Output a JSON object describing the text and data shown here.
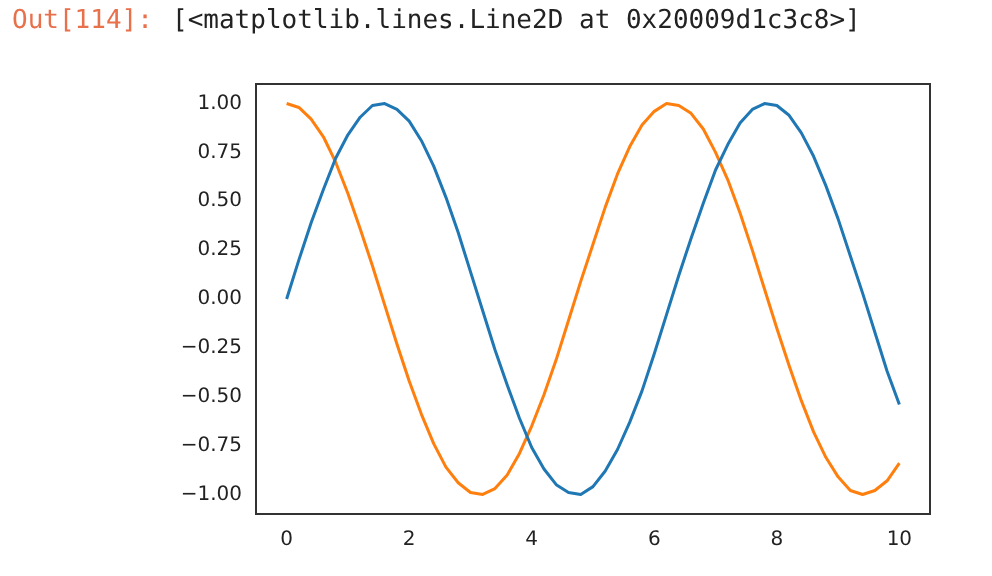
{
  "chart_data": {
    "type": "line",
    "annotations": [
      "Out[114]:",
      "[<matplotlib.lines.Line2D at 0x20009d1c3c8>]"
    ],
    "x": [
      0,
      0.2,
      0.4,
      0.6,
      0.8,
      1,
      1.2,
      1.4,
      1.6,
      1.8,
      2,
      2.2,
      2.4,
      2.6,
      2.8,
      3,
      3.2,
      3.4,
      3.6,
      3.8,
      4,
      4.2,
      4.4,
      4.6,
      4.8,
      5,
      5.2,
      5.4,
      5.6,
      5.8,
      6,
      6.2,
      6.4,
      6.6,
      6.8,
      7,
      7.2,
      7.4,
      7.6,
      7.8,
      8,
      8.2,
      8.4,
      8.6,
      8.8,
      9,
      9.2,
      9.4,
      9.6,
      9.8,
      10
    ],
    "series": [
      {
        "color": "#1f77b4",
        "values": [
          0,
          0.2,
          0.39,
          0.56,
          0.72,
          0.84,
          0.93,
          0.99,
          1,
          0.97,
          0.91,
          0.81,
          0.68,
          0.52,
          0.34,
          0.14,
          -0.06,
          -0.26,
          -0.44,
          -0.61,
          -0.76,
          -0.87,
          -0.95,
          -0.99,
          -1,
          -0.96,
          -0.88,
          -0.77,
          -0.63,
          -0.47,
          -0.28,
          -0.08,
          0.12,
          0.31,
          0.49,
          0.66,
          0.79,
          0.9,
          0.97,
          1,
          0.99,
          0.94,
          0.85,
          0.73,
          0.58,
          0.41,
          0.22,
          0.03,
          -0.17,
          -0.37,
          -0.54
        ]
      },
      {
        "color": "#ff7f0e",
        "values": [
          1,
          0.98,
          0.92,
          0.83,
          0.7,
          0.54,
          0.36,
          0.17,
          -0.03,
          -0.23,
          -0.42,
          -0.59,
          -0.74,
          -0.86,
          -0.94,
          -0.99,
          -1,
          -0.97,
          -0.9,
          -0.79,
          -0.65,
          -0.49,
          -0.31,
          -0.11,
          0.09,
          0.28,
          0.47,
          0.64,
          0.78,
          0.89,
          0.96,
          1,
          0.99,
          0.95,
          0.87,
          0.75,
          0.61,
          0.44,
          0.25,
          0.05,
          -0.15,
          -0.34,
          -0.52,
          -0.68,
          -0.81,
          -0.91,
          -0.98,
          -1,
          -0.98,
          -0.93,
          -0.84
        ]
      }
    ],
    "xlim": [
      -0.5,
      10.5
    ],
    "xticks": [
      0,
      2,
      4,
      6,
      8,
      10
    ],
    "ylim": [
      -1.1,
      1.1
    ],
    "yticks": [
      {
        "value": -1,
        "label": "−1.00"
      },
      {
        "value": -0.75,
        "label": "−0.75"
      },
      {
        "value": -0.5,
        "label": "−0.50"
      },
      {
        "value": -0.25,
        "label": "−0.25"
      },
      {
        "value": 0,
        "label": "0.00"
      },
      {
        "value": 0.25,
        "label": "0.25"
      },
      {
        "value": 0.5,
        "label": "0.50"
      },
      {
        "value": 0.75,
        "label": "0.75"
      },
      {
        "value": 1,
        "label": "1.00"
      }
    ]
  }
}
